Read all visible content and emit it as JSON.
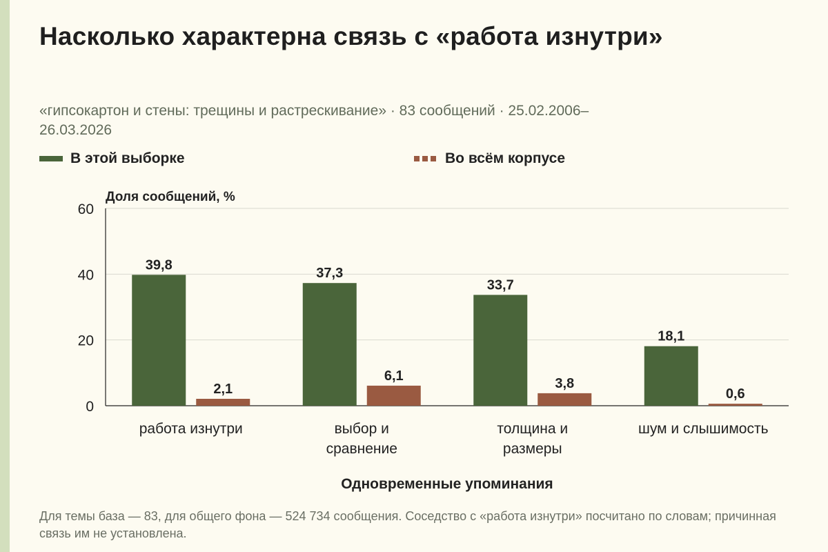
{
  "title": "Насколько характерна связь с «работа изнутри»",
  "subtitle": "«гипсокартон и стены: трещины и растрескивание» · 83 сообщений · 25.02.2006–26.03.2026",
  "legend": [
    {
      "label": "В этой выборке",
      "color": "#4a653a",
      "style": "solid"
    },
    {
      "label": "Во всём корпусе",
      "color": "#9a5a41",
      "style": "dashed"
    }
  ],
  "footnote": "Для темы база — 83, для общего фона — 524 734 сообщения. Соседство с «работа изнутри» посчитано по словам; причинная связь им не установлена.",
  "colors": {
    "sample": "#4a653a",
    "corpus": "#9a5a41",
    "grid": "#d9d9cf",
    "background": "#fdfbf1",
    "stripe": "#d3dfbd"
  },
  "chart_data": {
    "type": "bar",
    "ylabel": "Доля сообщений, %",
    "xlabel": "Одновременные упоминания",
    "ylim": [
      0,
      60
    ],
    "yticks": [
      "0",
      "20",
      "40",
      "60"
    ],
    "grid": true,
    "legend_position": "top",
    "categories": [
      "работа изнутри",
      "выбор и сравнение",
      "толщина и размеры",
      "шум и слышимость"
    ],
    "series": [
      {
        "name": "В этой выборке",
        "values": [
          39.8,
          37.3,
          33.7,
          18.1
        ],
        "labels": [
          "39,8",
          "37,3",
          "33,7",
          "18,1"
        ]
      },
      {
        "name": "Во всём корпусе",
        "values": [
          2.1,
          6.1,
          3.8,
          0.6
        ],
        "labels": [
          "2,1",
          "6,1",
          "3,8",
          "0,6"
        ]
      }
    ]
  }
}
